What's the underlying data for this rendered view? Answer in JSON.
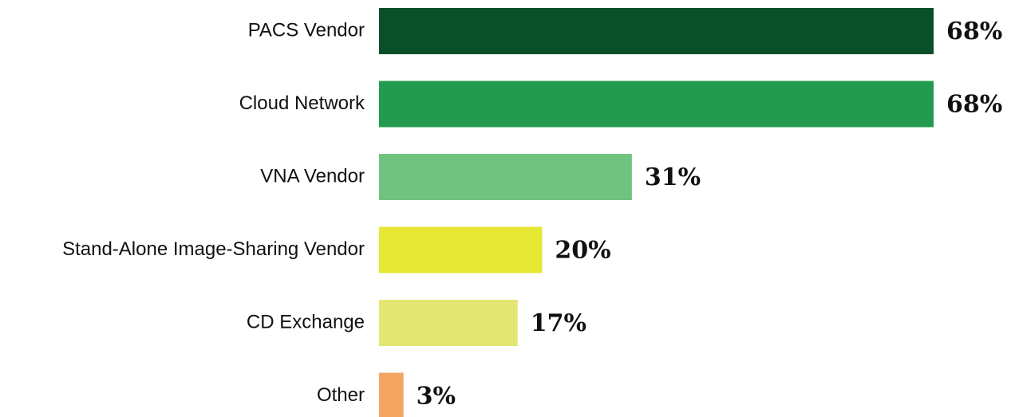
{
  "chart_data": {
    "type": "bar",
    "orientation": "horizontal",
    "categories": [
      "PACS Vendor",
      "Cloud Network",
      "VNA Vendor",
      "Stand-Alone Image-Sharing Vendor",
      "CD Exchange",
      "Other"
    ],
    "values": [
      68,
      68,
      31,
      20,
      17,
      3
    ],
    "value_labels": [
      "68%",
      "68%",
      "31%",
      "20%",
      "17%",
      "3%"
    ],
    "colors": [
      "#0b4f29",
      "#229b4f",
      "#6fc37e",
      "#e5e734",
      "#e3e673",
      "#f4a561"
    ]
  }
}
